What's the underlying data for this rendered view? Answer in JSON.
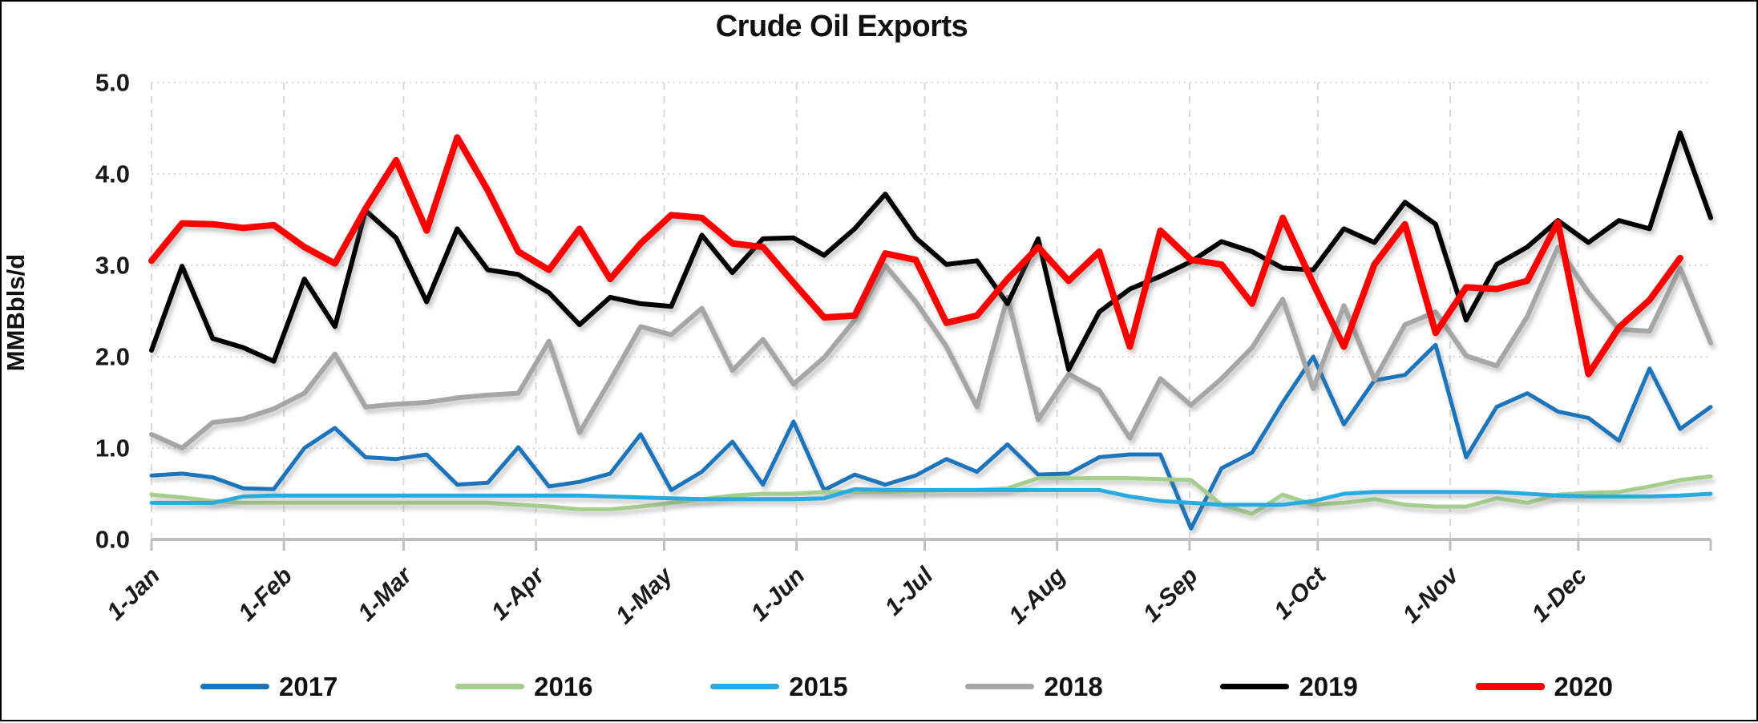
{
  "title": "Crude Oil Exports",
  "y_axis": {
    "label": "MMBbls/d",
    "ticks": [
      "5.0",
      "4.0",
      "3.0",
      "2.0",
      "1.0",
      "0.0"
    ]
  },
  "x_axis": {
    "labels": [
      "1-Jan",
      "1-Feb",
      "1-Mar",
      "1-Apr",
      "1-May",
      "1-Jun",
      "1-Jul",
      "1-Aug",
      "1-Sep",
      "1-Oct",
      "1-Nov",
      "1-Dec"
    ]
  },
  "colors": {
    "grid": "#D9D9D9",
    "axis": "#BFBFBF",
    "text": "#1A1A1A"
  },
  "chart_data": {
    "type": "line",
    "title": "Crude Oil Exports",
    "xlabel": "",
    "ylabel": "MMBbls/d",
    "ylim": [
      0,
      5
    ],
    "x_unit": "weekly (Jan 1 - Dec 31)",
    "grid": "horizontal dotted, vertical dashed at month starts",
    "legend_position": "bottom",
    "x_tick_labels": [
      "1-Jan",
      "1-Feb",
      "1-Mar",
      "1-Apr",
      "1-May",
      "1-Jun",
      "1-Jul",
      "1-Aug",
      "1-Sep",
      "1-Oct",
      "1-Nov",
      "1-Dec"
    ],
    "series": [
      {
        "name": "2017",
        "color": "#1C75BC",
        "width": 5,
        "values": [
          0.7,
          0.72,
          0.68,
          0.56,
          0.55,
          1.0,
          1.22,
          0.9,
          0.88,
          0.93,
          0.6,
          0.62,
          1.01,
          0.58,
          0.63,
          0.72,
          1.15,
          0.54,
          0.74,
          1.07,
          0.6,
          1.29,
          0.54,
          0.71,
          0.6,
          0.7,
          0.88,
          0.74,
          1.04,
          0.71,
          0.72,
          0.9,
          0.93,
          0.93,
          0.12,
          0.78,
          0.95,
          1.5,
          2.0,
          1.26,
          1.74,
          1.8,
          2.13,
          0.9,
          1.45,
          1.6,
          1.4,
          1.33,
          1.08,
          1.87,
          1.21,
          1.45
        ]
      },
      {
        "name": "2016",
        "color": "#A5CE8D",
        "width": 5,
        "values": [
          0.49,
          0.46,
          0.42,
          0.4,
          0.4,
          0.4,
          0.4,
          0.4,
          0.4,
          0.4,
          0.4,
          0.4,
          0.38,
          0.36,
          0.33,
          0.33,
          0.36,
          0.4,
          0.44,
          0.48,
          0.5,
          0.5,
          0.52,
          0.52,
          0.52,
          0.53,
          0.54,
          0.54,
          0.56,
          0.67,
          0.67,
          0.67,
          0.67,
          0.66,
          0.65,
          0.38,
          0.28,
          0.49,
          0.38,
          0.4,
          0.44,
          0.38,
          0.36,
          0.36,
          0.45,
          0.4,
          0.49,
          0.51,
          0.52,
          0.58,
          0.65,
          0.69
        ]
      },
      {
        "name": "2015",
        "color": "#29ABE2",
        "width": 5,
        "values": [
          0.4,
          0.4,
          0.4,
          0.47,
          0.48,
          0.48,
          0.48,
          0.48,
          0.48,
          0.48,
          0.48,
          0.48,
          0.48,
          0.48,
          0.48,
          0.47,
          0.46,
          0.45,
          0.44,
          0.44,
          0.44,
          0.44,
          0.45,
          0.55,
          0.54,
          0.54,
          0.54,
          0.54,
          0.54,
          0.54,
          0.54,
          0.54,
          0.47,
          0.42,
          0.4,
          0.38,
          0.38,
          0.38,
          0.42,
          0.5,
          0.52,
          0.52,
          0.52,
          0.52,
          0.52,
          0.5,
          0.48,
          0.47,
          0.47,
          0.47,
          0.48,
          0.5
        ]
      },
      {
        "name": "2018",
        "color": "#A6A6A6",
        "width": 6,
        "values": [
          1.15,
          1.0,
          1.28,
          1.32,
          1.43,
          1.6,
          2.03,
          1.45,
          1.48,
          1.5,
          1.55,
          1.58,
          1.6,
          2.17,
          1.17,
          1.74,
          2.33,
          2.24,
          2.53,
          1.85,
          2.19,
          1.7,
          1.99,
          2.4,
          3.0,
          2.6,
          2.11,
          1.45,
          2.65,
          1.31,
          1.81,
          1.63,
          1.11,
          1.76,
          1.47,
          1.76,
          2.1,
          2.63,
          1.65,
          2.56,
          1.75,
          2.35,
          2.49,
          2.01,
          1.9,
          2.44,
          3.2,
          2.7,
          2.3,
          2.28,
          2.97,
          2.15
        ]
      },
      {
        "name": "2019",
        "color": "#000000",
        "width": 6,
        "values": [
          2.07,
          2.99,
          2.2,
          2.1,
          1.95,
          2.85,
          2.33,
          3.6,
          3.3,
          2.6,
          3.4,
          2.95,
          2.9,
          2.7,
          2.35,
          2.65,
          2.58,
          2.55,
          3.33,
          2.92,
          3.29,
          3.3,
          3.11,
          3.4,
          3.78,
          3.3,
          3.01,
          3.05,
          2.58,
          3.29,
          1.86,
          2.49,
          2.74,
          2.88,
          3.04,
          3.26,
          3.15,
          2.97,
          2.95,
          3.4,
          3.25,
          3.69,
          3.45,
          2.4,
          3.01,
          3.2,
          3.49,
          3.25,
          3.49,
          3.4,
          4.45,
          3.52
        ]
      },
      {
        "name": "2020",
        "color": "#FE0000",
        "width": 8,
        "values": [
          3.05,
          3.46,
          3.45,
          3.41,
          3.44,
          3.2,
          3.02,
          3.62,
          4.15,
          3.38,
          4.4,
          3.82,
          3.15,
          2.95,
          3.4,
          2.85,
          3.24,
          3.55,
          3.52,
          3.24,
          3.2,
          2.81,
          2.43,
          2.45,
          3.13,
          3.06,
          2.37,
          2.45,
          2.85,
          3.2,
          2.83,
          3.15,
          2.11,
          3.38,
          3.06,
          3.01,
          2.58,
          3.52,
          2.8,
          2.11,
          3.01,
          3.45,
          2.26,
          2.76,
          2.74,
          2.83,
          3.47,
          1.81,
          2.32,
          2.62,
          3.08
        ]
      }
    ]
  },
  "legend": [
    {
      "label": "2017",
      "color": "#1C75BC"
    },
    {
      "label": "2016",
      "color": "#A5CE8D"
    },
    {
      "label": "2015",
      "color": "#29ABE2"
    },
    {
      "label": "2018",
      "color": "#A6A6A6"
    },
    {
      "label": "2019",
      "color": "#000000"
    },
    {
      "label": "2020",
      "color": "#FE0000"
    }
  ]
}
